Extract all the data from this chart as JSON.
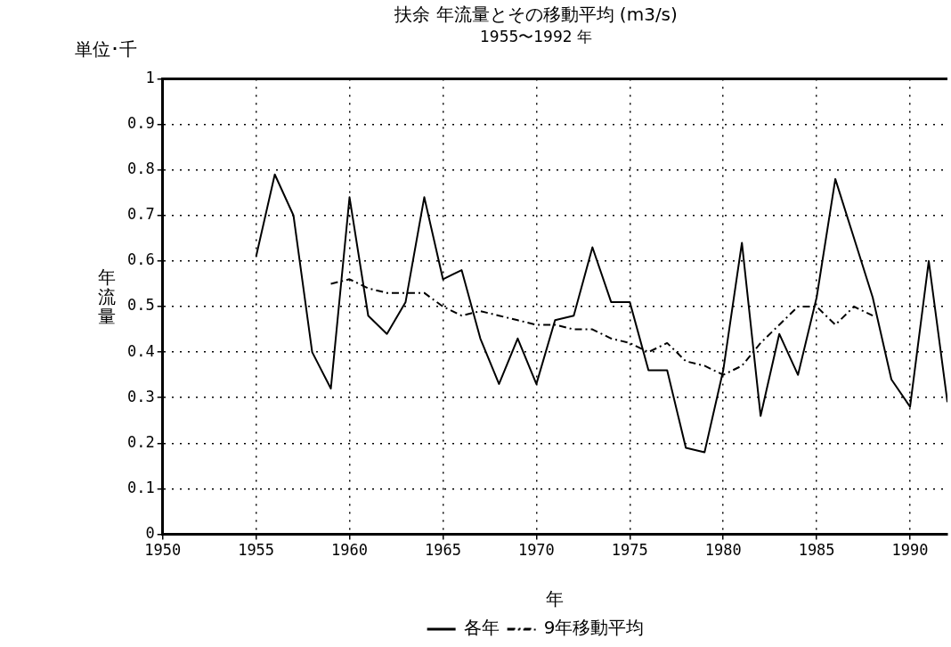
{
  "chart_data": {
    "type": "line",
    "title": "扶余 年流量とその移動平均 (m3/s)",
    "subtitle": "1955〜1992 年",
    "xlabel": "年",
    "ylabel": "年流量",
    "annotations": [
      "単位･千"
    ],
    "xlim": [
      1950,
      1992
    ],
    "xticks": [
      1950,
      1955,
      1960,
      1965,
      1970,
      1975,
      1980,
      1985,
      1990
    ],
    "ylim": [
      0,
      1
    ],
    "yticks": [
      0,
      0.1,
      0.2,
      0.3,
      0.4,
      0.5,
      0.6,
      0.7,
      0.8,
      0.9,
      1
    ],
    "grid": true,
    "legend": "bottom",
    "marker": "none",
    "series": [
      {
        "name": "各年",
        "color": "#000000",
        "line_style": "solid",
        "x": [
          1955,
          1956,
          1957,
          1958,
          1959,
          1960,
          1961,
          1962,
          1963,
          1964,
          1965,
          1966,
          1967,
          1968,
          1969,
          1970,
          1971,
          1972,
          1973,
          1974,
          1975,
          1976,
          1977,
          1978,
          1979,
          1980,
          1981,
          1982,
          1983,
          1984,
          1985,
          1986,
          1987,
          1988,
          1989,
          1990,
          1991,
          1992
        ],
        "values": [
          0.61,
          0.79,
          0.7,
          0.4,
          0.32,
          0.74,
          0.48,
          0.44,
          0.51,
          0.74,
          0.56,
          0.58,
          0.43,
          0.33,
          0.43,
          0.33,
          0.47,
          0.48,
          0.63,
          0.51,
          0.51,
          0.36,
          0.36,
          0.19,
          0.18,
          0.36,
          0.64,
          0.26,
          0.44,
          0.35,
          0.52,
          0.78,
          0.65,
          0.52,
          0.34,
          0.28,
          0.6,
          0.29
        ]
      },
      {
        "name": "9年移動平均",
        "color": "#000000",
        "line_style": "dashed",
        "x": [
          1959,
          1960,
          1961,
          1962,
          1963,
          1964,
          1965,
          1966,
          1967,
          1968,
          1969,
          1970,
          1971,
          1972,
          1973,
          1974,
          1975,
          1976,
          1977,
          1978,
          1979,
          1980,
          1981,
          1982,
          1983,
          1984,
          1985,
          1986,
          1987,
          1988
        ],
        "values": [
          0.55,
          0.56,
          0.54,
          0.53,
          0.53,
          0.53,
          0.5,
          0.48,
          0.49,
          0.48,
          0.47,
          0.46,
          0.46,
          0.45,
          0.45,
          0.43,
          0.42,
          0.4,
          0.42,
          0.38,
          0.37,
          0.35,
          0.37,
          0.42,
          0.46,
          0.5,
          0.5,
          0.46,
          0.5,
          0.48
        ]
      }
    ]
  }
}
